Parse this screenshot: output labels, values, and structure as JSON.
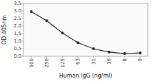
{
  "chart_data": {
    "type": "line",
    "categories": [
      "500",
      "250",
      "125",
      "63",
      "31",
      "16",
      "8",
      "0"
    ],
    "values": [
      2.95,
      2.35,
      1.55,
      0.9,
      0.5,
      0.28,
      0.18,
      0.22
    ],
    "xlabel": "Human IgG (ng/ml)",
    "ylabel": "OD 405nm",
    "ylim": [
      0.0,
      3.5
    ],
    "yticks": [
      {
        "value": 0.0,
        "label": "0.0"
      },
      0.5,
      {
        "value": 1.0,
        "label": "1.0"
      },
      1.5,
      {
        "value": 2.0,
        "label": "2.0"
      },
      2.5,
      {
        "value": 3.0,
        "label": "3.0"
      },
      3.5
    ],
    "color": "#222222",
    "marker": "circle",
    "grid": false
  }
}
